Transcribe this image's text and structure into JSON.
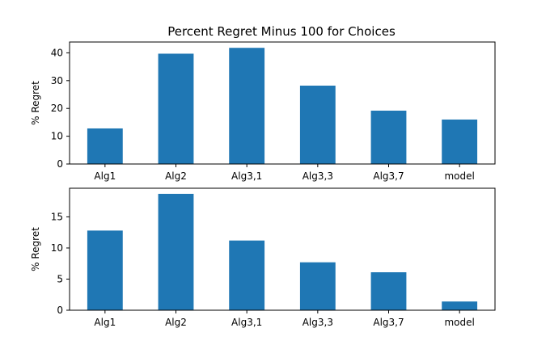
{
  "figure_title": "Percent Regret Minus 100 for Choices",
  "colors": {
    "bar": "#1f77b4"
  },
  "chart_data": [
    {
      "type": "bar",
      "title": "Percent Regret Minus 100 for Choices",
      "categories": [
        "Alg1",
        "Alg2",
        "Alg3,1",
        "Alg3,3",
        "Alg3,7",
        "model"
      ],
      "values": [
        12.8,
        39.7,
        41.8,
        28.2,
        19.2,
        16.0
      ],
      "xlabel": "",
      "ylabel": "% Regret",
      "ylim": [
        0,
        43.9
      ],
      "yticks": [
        0,
        10,
        20,
        30,
        40
      ],
      "grid": false
    },
    {
      "type": "bar",
      "title": "",
      "categories": [
        "Alg1",
        "Alg2",
        "Alg3,1",
        "Alg3,3",
        "Alg3,7",
        "model"
      ],
      "values": [
        12.8,
        18.7,
        11.2,
        7.7,
        6.1,
        1.4
      ],
      "xlabel": "",
      "ylabel": "% Regret",
      "ylim": [
        0,
        19.6
      ],
      "yticks": [
        0,
        5,
        10,
        15
      ],
      "grid": false
    }
  ]
}
